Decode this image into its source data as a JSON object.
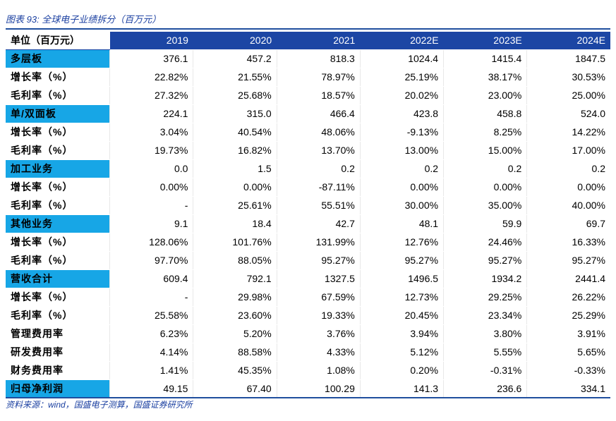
{
  "caption": "图表 93:  全球电子业绩拆分（百万元）",
  "header": {
    "label": "单位（百万元）",
    "years": [
      "2019",
      "2020",
      "2021",
      "2022E",
      "2023E",
      "2024E"
    ]
  },
  "rows": [
    {
      "label": "多层板",
      "group": true,
      "values": [
        "376.1",
        "457.2",
        "818.3",
        "1024.4",
        "1415.4",
        "1847.5"
      ]
    },
    {
      "label": "增长率（%）",
      "group": false,
      "values": [
        "22.82%",
        "21.55%",
        "78.97%",
        "25.19%",
        "38.17%",
        "30.53%"
      ]
    },
    {
      "label": "毛利率（%）",
      "group": false,
      "values": [
        "27.32%",
        "25.68%",
        "18.57%",
        "20.02%",
        "23.00%",
        "25.00%"
      ]
    },
    {
      "label": "单/双面板",
      "group": true,
      "values": [
        "224.1",
        "315.0",
        "466.4",
        "423.8",
        "458.8",
        "524.0"
      ]
    },
    {
      "label": "增长率（%）",
      "group": false,
      "values": [
        "3.04%",
        "40.54%",
        "48.06%",
        "-9.13%",
        "8.25%",
        "14.22%"
      ]
    },
    {
      "label": "毛利率（%）",
      "group": false,
      "values": [
        "19.73%",
        "16.82%",
        "13.70%",
        "13.00%",
        "15.00%",
        "17.00%"
      ]
    },
    {
      "label": "加工业务",
      "group": true,
      "values": [
        "0.0",
        "1.5",
        "0.2",
        "0.2",
        "0.2",
        "0.2"
      ]
    },
    {
      "label": "增长率（%）",
      "group": false,
      "values": [
        "0.00%",
        "0.00%",
        "-87.11%",
        "0.00%",
        "0.00%",
        "0.00%"
      ]
    },
    {
      "label": "毛利率（%）",
      "group": false,
      "values": [
        "-",
        "25.61%",
        "55.51%",
        "30.00%",
        "35.00%",
        "40.00%"
      ]
    },
    {
      "label": "其他业务",
      "group": true,
      "values": [
        "9.1",
        "18.4",
        "42.7",
        "48.1",
        "59.9",
        "69.7"
      ]
    },
    {
      "label": "增长率（%）",
      "group": false,
      "values": [
        "128.06%",
        "101.76%",
        "131.99%",
        "12.76%",
        "24.46%",
        "16.33%"
      ]
    },
    {
      "label": "毛利率（%）",
      "group": false,
      "values": [
        "97.70%",
        "88.05%",
        "95.27%",
        "95.27%",
        "95.27%",
        "95.27%"
      ]
    },
    {
      "label": "营收合计",
      "group": true,
      "values": [
        "609.4",
        "792.1",
        "1327.5",
        "1496.5",
        "1934.2",
        "2441.4"
      ]
    },
    {
      "label": "增长率（%）",
      "group": false,
      "values": [
        "-",
        "29.98%",
        "67.59%",
        "12.73%",
        "29.25%",
        "26.22%"
      ]
    },
    {
      "label": "毛利率（%）",
      "group": false,
      "values": [
        "25.58%",
        "23.60%",
        "19.33%",
        "20.45%",
        "23.34%",
        "25.29%"
      ]
    },
    {
      "label": "管理费用率",
      "group": false,
      "values": [
        "6.23%",
        "5.20%",
        "3.76%",
        "3.94%",
        "3.80%",
        "3.91%"
      ]
    },
    {
      "label": "研发费用率",
      "group": false,
      "values": [
        "4.14%",
        "88.58%",
        "4.33%",
        "5.12%",
        "5.55%",
        "5.65%"
      ]
    },
    {
      "label": "财务费用率",
      "group": false,
      "values": [
        "1.41%",
        "45.35%",
        "1.08%",
        "0.20%",
        "-0.31%",
        "-0.33%"
      ]
    },
    {
      "label": "归母净利润",
      "group": true,
      "values": [
        "49.15",
        "67.40",
        "100.29",
        "141.3",
        "236.6",
        "334.1"
      ]
    }
  ],
  "source": "资料来源：wind，国盛电子测算，国盛证券研究所",
  "colors": {
    "header_bg": "#1c46a4",
    "group_bg": "#17a6e6",
    "caption": "#1a3fa0"
  }
}
